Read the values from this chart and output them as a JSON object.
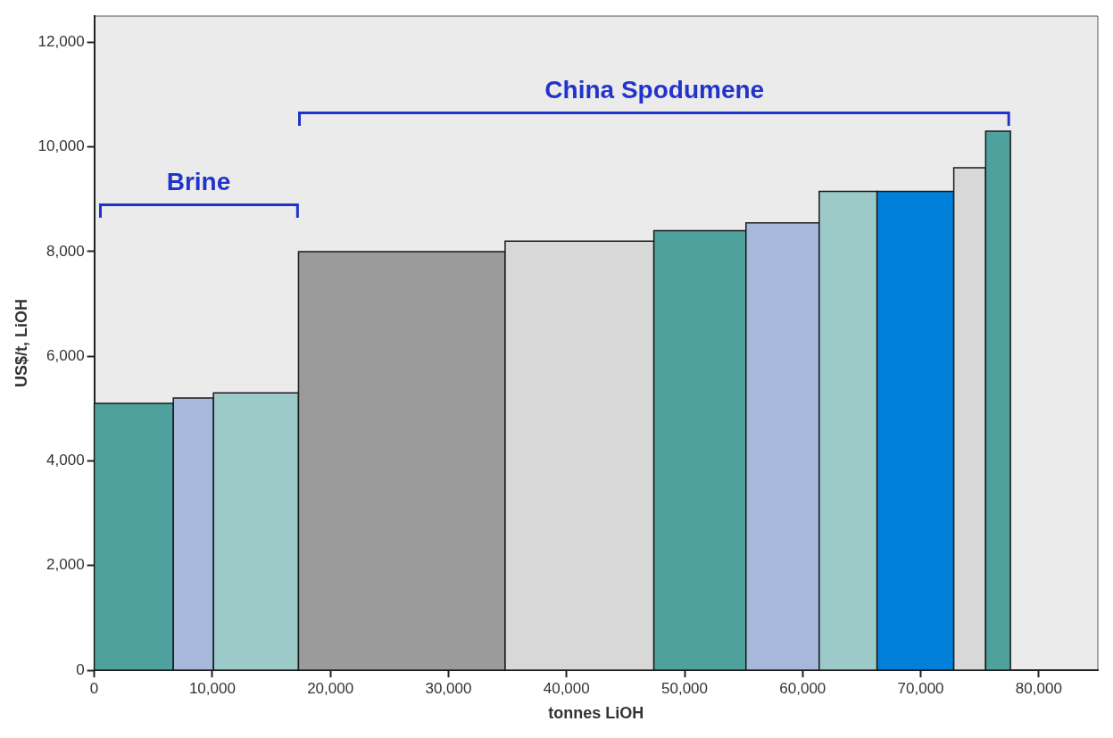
{
  "chart_data": {
    "type": "histogram",
    "xlabel": "tonnes LiOH",
    "ylabel": "US$/t, LiOH",
    "bins": [
      0,
      6700,
      10100,
      17300,
      34800,
      47400,
      55200,
      61400,
      66300,
      72800,
      75500,
      77600
    ],
    "values": [
      5100,
      5200,
      5300,
      8000,
      8200,
      8400,
      8550,
      9150,
      9150,
      9600,
      10300
    ],
    "colors": [
      "#4fa19e",
      "#a6b8dc",
      "#9ccac8",
      "#9b9b9b",
      "#d8d8d8",
      "#4fa19e",
      "#a6b8dc",
      "#9ccac8",
      "#0080d8",
      "#d8d8d8",
      "#4fa19e"
    ],
    "xlim": [
      0,
      85000
    ],
    "xticks": [
      0,
      {
        "value": 10000,
        "label": "10,000"
      },
      {
        "value": 20000,
        "label": "20,000"
      },
      {
        "value": 30000,
        "label": "30,000"
      },
      {
        "value": 40000,
        "label": "40,000"
      },
      {
        "value": 50000,
        "label": "50,000"
      },
      {
        "value": 60000,
        "label": "60,000"
      },
      {
        "value": 70000,
        "label": "70,000"
      },
      {
        "value": 80000,
        "label": "80,000"
      }
    ],
    "ylim": [
      0,
      12500
    ],
    "yticks": [
      0,
      {
        "value": 2000,
        "label": "2,000"
      },
      {
        "value": 4000,
        "label": "4,000"
      },
      {
        "value": 6000,
        "label": "6,000"
      },
      {
        "value": 8000,
        "label": "8,000"
      },
      {
        "value": 10000,
        "label": "10,000"
      },
      {
        "value": 12000,
        "label": "12,000"
      }
    ],
    "annotations": [
      "Brine",
      "China Spodumene"
    ],
    "grid": false,
    "legend": false
  }
}
